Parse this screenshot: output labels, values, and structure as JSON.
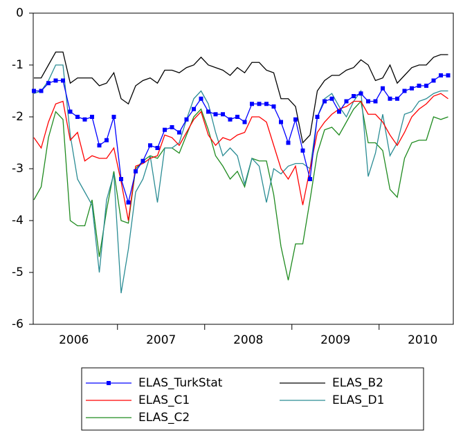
{
  "chart_data": {
    "type": "line",
    "categories": [
      null,
      null,
      null,
      null,
      null,
      "2006",
      null,
      null,
      null,
      null,
      null,
      null,
      null,
      null,
      null,
      null,
      null,
      "2007",
      null,
      null,
      null,
      null,
      null,
      null,
      null,
      null,
      null,
      null,
      null,
      "2008",
      null,
      null,
      null,
      null,
      null,
      null,
      null,
      null,
      null,
      null,
      null,
      "2009",
      null,
      null,
      null,
      null,
      null,
      null,
      null,
      null,
      null,
      null,
      null,
      "2010",
      null,
      null,
      null,
      null
    ],
    "ylim": [
      -6,
      0
    ],
    "yticks": [
      0,
      -1,
      -2,
      -3,
      -4,
      -5,
      -6
    ],
    "series": [
      {
        "name": "ELAS_TurkStat",
        "color": "#0000ff",
        "marker": "square",
        "values": [
          -1.5,
          -1.5,
          -1.35,
          -1.3,
          -1.3,
          -1.9,
          -2.0,
          -2.05,
          -2.0,
          -2.55,
          -2.45,
          -2.0,
          -3.2,
          -3.65,
          -3.05,
          -2.85,
          -2.55,
          -2.6,
          -2.25,
          -2.2,
          -2.3,
          -2.05,
          -1.85,
          -1.65,
          -1.9,
          -1.95,
          -1.95,
          -2.05,
          -2.0,
          -2.1,
          -1.75,
          -1.75,
          -1.75,
          -1.8,
          -2.1,
          -2.5,
          -2.05,
          -2.65,
          -3.2,
          -2.0,
          -1.7,
          -1.65,
          -1.9,
          -1.7,
          -1.6,
          -1.55,
          -1.7,
          -1.7,
          -1.45,
          -1.65,
          -1.65,
          -1.5,
          -1.45,
          -1.4,
          -1.4,
          -1.3,
          -1.2,
          -1.2
        ]
      },
      {
        "name": "ELAS_B2",
        "color": "#000000",
        "values": [
          -1.25,
          -1.25,
          -1.0,
          -0.75,
          -0.75,
          -1.35,
          -1.25,
          -1.25,
          -1.25,
          -1.4,
          -1.35,
          -1.15,
          -1.65,
          -1.75,
          -1.4,
          -1.3,
          -1.25,
          -1.35,
          -1.1,
          -1.1,
          -1.15,
          -1.05,
          -1.0,
          -0.85,
          -1.0,
          -1.05,
          -1.1,
          -1.2,
          -1.05,
          -1.15,
          -0.95,
          -0.95,
          -1.1,
          -1.15,
          -1.65,
          -1.65,
          -1.8,
          -2.5,
          -2.35,
          -1.5,
          -1.3,
          -1.2,
          -1.2,
          -1.1,
          -1.05,
          -0.9,
          -1.0,
          -1.3,
          -1.25,
          -1.0,
          -1.35,
          -1.2,
          -1.05,
          -1.0,
          -1.0,
          -0.85,
          -0.8,
          -0.8
        ]
      },
      {
        "name": "ELAS_C1",
        "color": "#ff0000",
        "values": [
          -2.4,
          -2.6,
          -2.1,
          -1.75,
          -1.7,
          -2.45,
          -2.3,
          -2.85,
          -2.75,
          -2.8,
          -2.8,
          -2.6,
          -3.25,
          -4.0,
          -2.95,
          -2.9,
          -2.8,
          -2.75,
          -2.35,
          -2.4,
          -2.55,
          -2.3,
          -2.05,
          -1.9,
          -2.35,
          -2.55,
          -2.4,
          -2.45,
          -2.35,
          -2.3,
          -2.0,
          -2.0,
          -2.1,
          -2.55,
          -3.0,
          -3.2,
          -2.95,
          -3.7,
          -3.0,
          -2.3,
          -2.1,
          -1.95,
          -1.85,
          -1.8,
          -1.7,
          -1.7,
          -1.95,
          -1.95,
          -2.1,
          -2.35,
          -2.55,
          -2.3,
          -2.0,
          -1.85,
          -1.75,
          -1.6,
          -1.55,
          -1.65
        ]
      },
      {
        "name": "ELAS_D1",
        "color": "#2a8c94",
        "values": [
          -1.55,
          -1.5,
          -1.3,
          -1.0,
          -1.0,
          -2.35,
          -3.2,
          -3.45,
          -3.7,
          -5.0,
          -3.6,
          -3.1,
          -5.4,
          -4.55,
          -3.45,
          -3.2,
          -2.75,
          -3.65,
          -2.6,
          -2.6,
          -2.5,
          -2.05,
          -1.65,
          -1.5,
          -1.75,
          -2.3,
          -2.75,
          -2.6,
          -2.75,
          -3.3,
          -2.8,
          -2.95,
          -3.65,
          -3.0,
          -3.1,
          -2.95,
          -2.9,
          -2.9,
          -3.0,
          -2.0,
          -1.65,
          -1.55,
          -1.8,
          -2.0,
          -1.7,
          -1.5,
          -3.15,
          -2.7,
          -1.95,
          -2.75,
          -2.5,
          -1.95,
          -1.9,
          -1.7,
          -1.65,
          -1.55,
          -1.5,
          -1.5
        ]
      },
      {
        "name": "ELAS_C2",
        "color": "#1e8a1e",
        "values": [
          -3.6,
          -3.35,
          -2.4,
          -1.9,
          -2.05,
          -4.0,
          -4.1,
          -4.1,
          -3.6,
          -4.7,
          -3.8,
          -3.05,
          -4.0,
          -4.05,
          -3.0,
          -2.85,
          -2.75,
          -2.8,
          -2.6,
          -2.6,
          -2.7,
          -2.35,
          -2.0,
          -1.85,
          -2.25,
          -2.75,
          -2.95,
          -3.2,
          -3.05,
          -3.35,
          -2.8,
          -2.85,
          -2.85,
          -3.5,
          -4.5,
          -5.15,
          -4.45,
          -4.45,
          -3.6,
          -2.7,
          -2.25,
          -2.2,
          -2.35,
          -2.1,
          -1.85,
          -1.7,
          -2.5,
          -2.5,
          -2.65,
          -3.4,
          -3.55,
          -2.8,
          -2.5,
          -2.45,
          -2.45,
          -2.0,
          -2.05,
          -2.0
        ]
      }
    ]
  }
}
